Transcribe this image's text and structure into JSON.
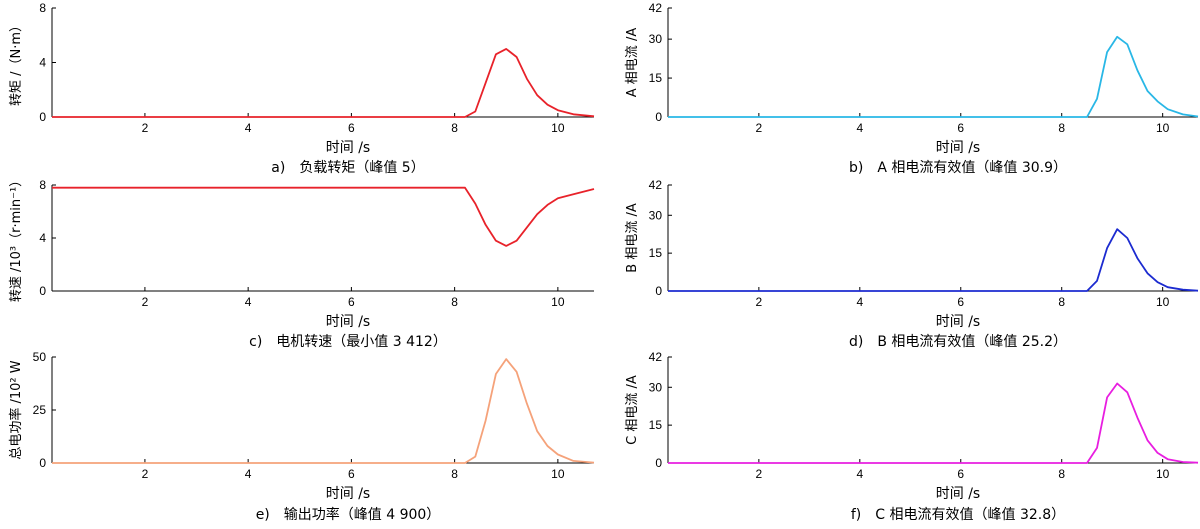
{
  "chart_data": [
    {
      "type": "line",
      "caption": "a)　负载转矩（峰值 5）",
      "xlabel": "时间 /s",
      "ylabel": "转矩 /（N·m）",
      "xlim": [
        0.2,
        10.7
      ],
      "ylim": [
        0,
        8
      ],
      "xticks": [
        2,
        4,
        6,
        8,
        10
      ],
      "yticks": [
        0,
        4,
        8
      ],
      "color": "#e8222a",
      "series": [
        {
          "x": [
            0.2,
            8.2,
            8.4,
            8.6,
            8.8,
            9.0,
            9.2,
            9.4,
            9.6,
            9.8,
            10.0,
            10.3,
            10.7
          ],
          "y": [
            0,
            0,
            0.4,
            2.5,
            4.6,
            5.0,
            4.4,
            2.8,
            1.6,
            0.9,
            0.5,
            0.2,
            0.05
          ]
        }
      ]
    },
    {
      "type": "line",
      "caption": "b)　A 相电流有效值（峰值 30.9）",
      "xlabel": "时间 /s",
      "ylabel": "A 相电流 /A",
      "xlim": [
        0.2,
        10.7
      ],
      "ylim": [
        0,
        42
      ],
      "xticks": [
        2,
        4,
        6,
        8,
        10
      ],
      "yticks": [
        0,
        15,
        30,
        42
      ],
      "color": "#29b7e6",
      "series": [
        {
          "x": [
            0.2,
            8.5,
            8.7,
            8.9,
            9.1,
            9.3,
            9.5,
            9.7,
            9.9,
            10.1,
            10.4,
            10.7
          ],
          "y": [
            0,
            0,
            7,
            25,
            30.9,
            28,
            18,
            10,
            6,
            3,
            1,
            0.2
          ]
        }
      ]
    },
    {
      "type": "line",
      "caption": "c)　电机转速（最小值 3 412）",
      "xlabel": "时间 /s",
      "ylabel": "转速 /10³（r·min⁻¹）",
      "xlim": [
        0.2,
        10.7
      ],
      "ylim": [
        0,
        8
      ],
      "xticks": [
        2,
        4,
        6,
        8,
        10
      ],
      "yticks": [
        0,
        4,
        8
      ],
      "color": "#e8222a",
      "series": [
        {
          "x": [
            0.2,
            8.2,
            8.4,
            8.6,
            8.8,
            9.0,
            9.2,
            9.4,
            9.6,
            9.8,
            10.0,
            10.3,
            10.7
          ],
          "y": [
            7.8,
            7.8,
            6.6,
            5.0,
            3.8,
            3.4,
            3.8,
            4.8,
            5.8,
            6.5,
            7.0,
            7.3,
            7.7
          ]
        }
      ]
    },
    {
      "type": "line",
      "caption": "d)　B 相电流有效值（峰值 25.2）",
      "xlabel": "时间 /s",
      "ylabel": "B 相电流 /A",
      "xlim": [
        0.2,
        10.7
      ],
      "ylim": [
        0,
        42
      ],
      "xticks": [
        2,
        4,
        6,
        8,
        10
      ],
      "yticks": [
        0,
        15,
        30,
        42
      ],
      "color": "#1c2bd0",
      "series": [
        {
          "x": [
            0.2,
            8.5,
            8.7,
            8.9,
            9.1,
            9.3,
            9.5,
            9.7,
            9.9,
            10.1,
            10.4,
            10.7
          ],
          "y": [
            0,
            0,
            4,
            17,
            24.5,
            21,
            13,
            7,
            3.5,
            1.5,
            0.5,
            0.1
          ]
        }
      ]
    },
    {
      "type": "line",
      "caption": "e)　输出功率（峰值 4 900）",
      "xlabel": "时间 /s",
      "ylabel": "总电功率 /10² W",
      "xlim": [
        0.2,
        10.7
      ],
      "ylim": [
        0,
        50
      ],
      "xticks": [
        2,
        4,
        6,
        8,
        10
      ],
      "yticks": [
        0,
        25,
        50
      ],
      "color": "#f5a27a",
      "series": [
        {
          "x": [
            0.2,
            8.2,
            8.4,
            8.6,
            8.8,
            9.0,
            9.2,
            9.4,
            9.6,
            9.8,
            10.0,
            10.3,
            10.7
          ],
          "y": [
            0,
            0,
            3,
            20,
            42,
            49,
            43,
            28,
            15,
            8,
            4,
            1,
            0.2
          ]
        }
      ]
    },
    {
      "type": "line",
      "caption": "f)　C 相电流有效值（峰值 32.8）",
      "xlabel": "时间 /s",
      "ylabel": "C 相电流 /A",
      "xlim": [
        0.2,
        10.7
      ],
      "ylim": [
        0,
        42
      ],
      "xticks": [
        2,
        4,
        6,
        8,
        10
      ],
      "yticks": [
        0,
        15,
        30,
        42
      ],
      "color": "#e81ee0",
      "series": [
        {
          "x": [
            0.2,
            8.5,
            8.7,
            8.9,
            9.1,
            9.3,
            9.5,
            9.7,
            9.9,
            10.1,
            10.4,
            10.7
          ],
          "y": [
            0,
            0,
            6,
            26,
            31.5,
            28,
            18,
            9,
            4,
            1.5,
            0.4,
            0.1
          ]
        }
      ]
    }
  ]
}
